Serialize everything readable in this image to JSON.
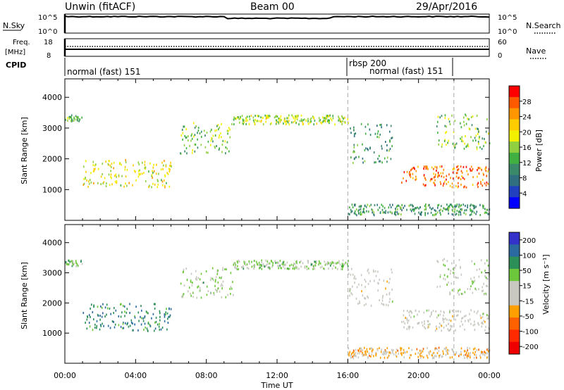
{
  "header": {
    "title": "Unwin (fitACF)",
    "beam": "Beam 00",
    "date": "29/Apr/2016"
  },
  "nsky_panel": {
    "label": "N.Sky",
    "right_label": "N.Search",
    "left_ticks": [
      "10^5",
      "10^0"
    ],
    "right_ticks": [
      "10^5",
      "10^0"
    ]
  },
  "freq_panel": {
    "label_line1": "Freq.",
    "label_line2": "[MHz]",
    "right_label": "Nave",
    "left_ticks": [
      "18",
      "8"
    ],
    "right_ticks": [
      "60",
      "0"
    ]
  },
  "cpid_panel": {
    "label": "CPID",
    "segments": [
      "normal (fast) 151",
      "rbsp 200",
      "normal (fast) 151"
    ]
  },
  "power_colorbar": {
    "label": "Power [dB]",
    "ticks": [
      "28",
      "24",
      "20",
      "16",
      "12",
      "8",
      "4"
    ],
    "colors": [
      "#ff0000",
      "#ff5a00",
      "#ff9600",
      "#ffcc00",
      "#f2f000",
      "#90d040",
      "#40b040",
      "#3a8a6a",
      "#2f6f7f",
      "#2040c0",
      "#0000ff"
    ]
  },
  "velocity_colorbar": {
    "label": "Velocity [m s⁻¹]",
    "ticks": [
      "200",
      "100",
      "50",
      "15",
      "-15",
      "-50",
      "-100",
      "-200"
    ],
    "colors": [
      "#3333cc",
      "#2a6aa0",
      "#2b8f57",
      "#6cc83a",
      "#c8c8c0",
      "#c8c8c0",
      "#ffa000",
      "#ff6000",
      "#ff2a00",
      "#ee0000"
    ]
  },
  "chart_data": [
    {
      "type": "heatmap",
      "name": "power",
      "xlabel": "",
      "ylabel": "Slant Range [km]",
      "x_range": [
        "00:00",
        "24:00"
      ],
      "ylim": [
        0,
        4600
      ],
      "y_ticks": [
        "4000",
        "3000",
        "2000",
        "1000"
      ],
      "zlabel": "Power [dB]",
      "bands": [
        {
          "t0": 0.0,
          "t1": 1.0,
          "r0": 3250,
          "r1": 3450,
          "value": 12
        },
        {
          "t0": 1.0,
          "t1": 6.0,
          "r0": 1100,
          "r1": 2000,
          "value": 18
        },
        {
          "t0": 6.5,
          "t1": 9.5,
          "r0": 2200,
          "r1": 3200,
          "value": 14
        },
        {
          "t0": 9.5,
          "t1": 16.0,
          "r0": 3150,
          "r1": 3450,
          "value": 16
        },
        {
          "t0": 16.0,
          "t1": 18.5,
          "r0": 1900,
          "r1": 3200,
          "value": 10
        },
        {
          "t0": 16.0,
          "t1": 24.0,
          "r0": 200,
          "r1": 550,
          "value": 10
        },
        {
          "t0": 19.0,
          "t1": 24.0,
          "r0": 1100,
          "r1": 1800,
          "value": 26
        },
        {
          "t0": 21.0,
          "t1": 24.0,
          "r0": 2300,
          "r1": 3500,
          "value": 14
        }
      ]
    },
    {
      "type": "heatmap",
      "name": "velocity",
      "xlabel": "Time UT",
      "ylabel": "Slant Range [km]",
      "x_range": [
        "00:00",
        "24:00"
      ],
      "ylim": [
        0,
        4600
      ],
      "y_ticks": [
        "4000",
        "3000",
        "2000",
        "1000"
      ],
      "x_ticks": [
        "00:00",
        "04:00",
        "08:00",
        "12:00",
        "16:00",
        "20:00",
        "00:00"
      ],
      "zlabel": "Velocity [m s⁻¹]",
      "bands": [
        {
          "t0": 0.0,
          "t1": 1.0,
          "r0": 3250,
          "r1": 3450,
          "value": 80
        },
        {
          "t0": 1.0,
          "t1": 6.0,
          "r0": 1100,
          "r1": 2000,
          "value": 150
        },
        {
          "t0": 6.5,
          "t1": 9.5,
          "r0": 2200,
          "r1": 3200,
          "value": 60
        },
        {
          "t0": 9.5,
          "t1": 16.0,
          "r0": 3150,
          "r1": 3450,
          "value": 60
        },
        {
          "t0": 16.0,
          "t1": 18.5,
          "r0": 1900,
          "r1": 3200,
          "value": 0
        },
        {
          "t0": 16.0,
          "t1": 24.0,
          "r0": 200,
          "r1": 550,
          "value": -60
        },
        {
          "t0": 19.0,
          "t1": 24.0,
          "r0": 1100,
          "r1": 1800,
          "value": 0
        },
        {
          "t0": 21.0,
          "t1": 24.0,
          "r0": 2300,
          "r1": 3500,
          "value": 30
        }
      ]
    }
  ]
}
